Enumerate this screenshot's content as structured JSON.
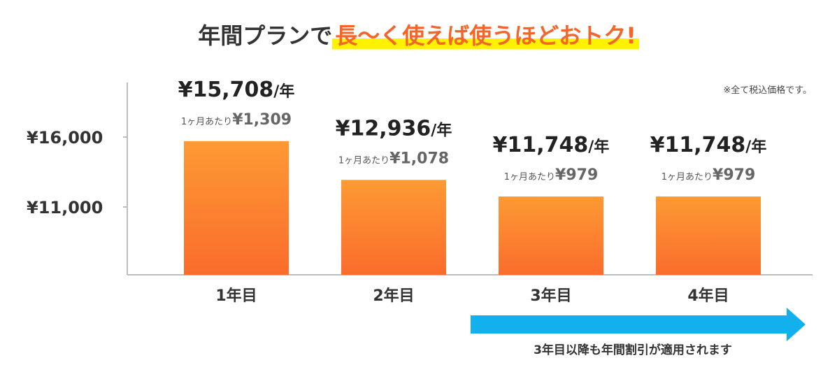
{
  "title": {
    "lead": "年間プランで",
    "highlight": "長〜く使えば使うほどおトク!"
  },
  "tax_note": "※全て税込価格です。",
  "arrow_caption": "3年目以降も年間割引が適用されます",
  "colors": {
    "bar_top": "#fd9a34",
    "bar_bottom": "#fa6c2c",
    "arrow": "#12b0ec",
    "highlight_text": "#f5652a",
    "highlight_marker": "#fff200",
    "axis": "#bdbdbd"
  },
  "chart_data": {
    "type": "bar",
    "categories": [
      "1年目",
      "2年目",
      "3年目",
      "4年目"
    ],
    "values": [
      15708,
      12936,
      11748,
      11748
    ],
    "annual_labels": [
      "¥15,708",
      "¥12,936",
      "¥11,748",
      "¥11,748"
    ],
    "annual_unit": "/年",
    "monthly_prefix": "1ヶ月あたり",
    "monthly_values": [
      "¥1,309",
      "¥1,078",
      "¥979",
      "¥979"
    ],
    "yticks": [
      16000,
      11000
    ],
    "ytick_labels": [
      "¥16,000",
      "¥11,000"
    ],
    "ylim": [
      6200,
      22000
    ],
    "grid": false,
    "legend": "none"
  }
}
